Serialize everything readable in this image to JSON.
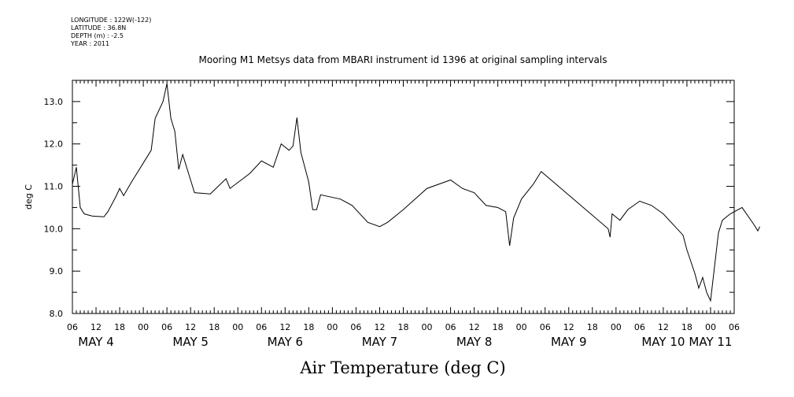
{
  "header": {
    "longitude": "LONGITUDE : 122W(-122)",
    "latitude": "LATITUDE : 36.8N",
    "depth": "DEPTH (m) : -2.5",
    "year": "YEAR : 2011"
  },
  "chart_data": {
    "type": "line",
    "title": "Mooring M1 Metsys data from MBARI instrument id 1396 at original sampling intervals",
    "xlabel": "Air Temperature (deg C)",
    "ylabel": "deg C",
    "ylim": [
      8.0,
      13.5
    ],
    "yticks": [
      "8.0",
      "9.0",
      "10.0",
      "11.0",
      "12.0",
      "13.0"
    ],
    "xlim": [
      "2011-05-04T06:00",
      "2011-05-11T06:00"
    ],
    "x_hour_ticks": [
      "06",
      "12",
      "18",
      "00",
      "06",
      "12",
      "18",
      "00",
      "06",
      "12",
      "18",
      "00",
      "06",
      "12",
      "18",
      "00",
      "06",
      "12",
      "18",
      "00",
      "06",
      "12",
      "18",
      "00",
      "06",
      "12",
      "18",
      "00",
      "06"
    ],
    "day_labels": [
      "MAY 4",
      "MAY 5",
      "MAY 6",
      "MAY 7",
      "MAY 8",
      "MAY 9",
      "MAY 10",
      "MAY 11"
    ],
    "grid": false,
    "series": [
      {
        "color": "#000000",
        "points": [
          [
            "2011-05-04T06:00",
            11.05
          ],
          [
            "2011-05-04T07:00",
            11.45
          ],
          [
            "2011-05-04T08:00",
            10.5
          ],
          [
            "2011-05-04T09:00",
            10.35
          ],
          [
            "2011-05-04T11:00",
            10.3
          ],
          [
            "2011-05-04T14:00",
            10.28
          ],
          [
            "2011-05-04T15:00",
            10.4
          ],
          [
            "2011-05-04T17:00",
            10.75
          ],
          [
            "2011-05-04T18:00",
            10.95
          ],
          [
            "2011-05-04T19:00",
            10.78
          ],
          [
            "2011-05-04T21:00",
            11.1
          ],
          [
            "2011-05-05T00:00",
            11.55
          ],
          [
            "2011-05-05T02:00",
            11.85
          ],
          [
            "2011-05-05T03:00",
            12.6
          ],
          [
            "2011-05-05T05:00",
            13.0
          ],
          [
            "2011-05-05T06:00",
            13.42
          ],
          [
            "2011-05-05T07:00",
            12.6
          ],
          [
            "2011-05-05T08:00",
            12.3
          ],
          [
            "2011-05-05T09:00",
            11.4
          ],
          [
            "2011-05-05T10:00",
            11.75
          ],
          [
            "2011-05-05T12:00",
            11.15
          ],
          [
            "2011-05-05T13:00",
            10.85
          ],
          [
            "2011-05-05T17:00",
            10.82
          ],
          [
            "2011-05-05T21:00",
            11.18
          ],
          [
            "2011-05-05T22:00",
            10.95
          ],
          [
            "2011-05-06T03:00",
            11.3
          ],
          [
            "2011-05-06T06:00",
            11.6
          ],
          [
            "2011-05-06T09:00",
            11.45
          ],
          [
            "2011-05-06T11:00",
            12.0
          ],
          [
            "2011-05-06T13:00",
            11.85
          ],
          [
            "2011-05-06T14:00",
            11.95
          ],
          [
            "2011-05-06T15:00",
            12.62
          ],
          [
            "2011-05-06T16:00",
            11.8
          ],
          [
            "2011-05-06T18:00",
            11.1
          ],
          [
            "2011-05-06T19:00",
            10.45
          ],
          [
            "2011-05-06T20:00",
            10.45
          ],
          [
            "2011-05-06T21:00",
            10.8
          ],
          [
            "2011-05-07T02:00",
            10.7
          ],
          [
            "2011-05-07T05:00",
            10.55
          ],
          [
            "2011-05-07T09:00",
            10.15
          ],
          [
            "2011-05-07T12:00",
            10.05
          ],
          [
            "2011-05-07T14:00",
            10.15
          ],
          [
            "2011-05-07T18:00",
            10.45
          ],
          [
            "2011-05-08T00:00",
            10.95
          ],
          [
            "2011-05-08T06:00",
            11.15
          ],
          [
            "2011-05-08T09:00",
            10.95
          ],
          [
            "2011-05-08T12:00",
            10.85
          ],
          [
            "2011-05-08T15:00",
            10.55
          ],
          [
            "2011-05-08T18:00",
            10.5
          ],
          [
            "2011-05-08T20:00",
            10.4
          ],
          [
            "2011-05-08T21:00",
            9.6
          ],
          [
            "2011-05-08T22:00",
            10.25
          ],
          [
            "2011-05-09T00:00",
            10.7
          ],
          [
            "2011-05-09T03:00",
            11.05
          ],
          [
            "2011-05-09T05:00",
            11.35
          ],
          [
            "2011-05-09T22:00",
            10.0
          ],
          [
            "2011-05-09T22:30",
            9.8
          ],
          [
            "2011-05-09T23:00",
            10.35
          ],
          [
            "2011-05-10T01:00",
            10.2
          ],
          [
            "2011-05-10T03:00",
            10.45
          ],
          [
            "2011-05-10T06:00",
            10.65
          ],
          [
            "2011-05-10T09:00",
            10.55
          ],
          [
            "2011-05-10T12:00",
            10.35
          ],
          [
            "2011-05-10T15:00",
            10.05
          ],
          [
            "2011-05-10T17:00",
            9.85
          ],
          [
            "2011-05-10T18:00",
            9.5
          ],
          [
            "2011-05-10T20:00",
            8.95
          ],
          [
            "2011-05-10T21:00",
            8.6
          ],
          [
            "2011-05-10T22:00",
            8.85
          ],
          [
            "2011-05-10T23:00",
            8.5
          ],
          [
            "2011-05-11T00:00",
            8.3
          ],
          [
            "2011-05-11T01:00",
            9.1
          ],
          [
            "2011-05-11T02:00",
            9.9
          ],
          [
            "2011-05-11T03:00",
            10.2
          ],
          [
            "2011-05-11T05:00",
            10.35
          ],
          [
            "2011-05-11T08:00",
            10.5
          ],
          [
            "2011-05-11T11:00",
            10.1
          ],
          [
            "2011-05-11T12:00",
            9.95
          ],
          [
            "2011-05-11T12:30",
            10.05
          ]
        ]
      }
    ]
  }
}
